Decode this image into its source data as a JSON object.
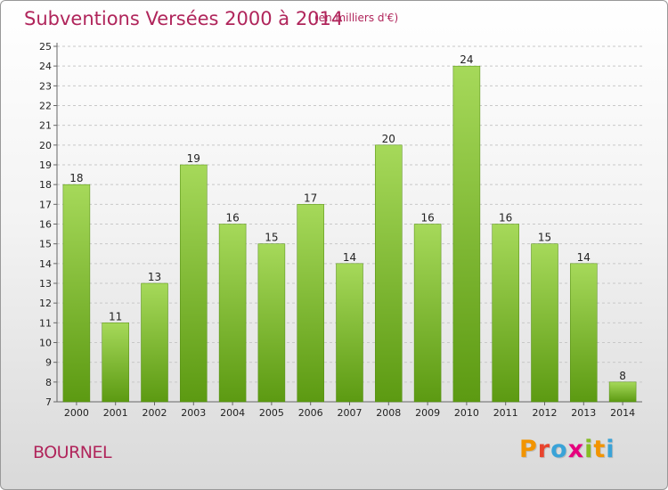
{
  "header": {
    "title": "Subventions Versées 2000 à 2014",
    "subtitle": "(en milliers d'€)"
  },
  "footer": {
    "commune": "BOURNEL",
    "logo_letters": [
      "P",
      "r",
      "o",
      "x",
      "i",
      "t",
      "i"
    ],
    "logo_colors": [
      "#f29400",
      "#e8442e",
      "#3aa3d8",
      "#e6007e",
      "#86bc25",
      "#f29400",
      "#3aa3d8"
    ]
  },
  "colors": {
    "bar_top": "#a6d95a",
    "bar_bottom": "#5c9a12",
    "accent": "#b0255b"
  },
  "chart_data": {
    "type": "bar",
    "categories": [
      "2000",
      "2001",
      "2002",
      "2003",
      "2004",
      "2005",
      "2006",
      "2007",
      "2008",
      "2009",
      "2010",
      "2011",
      "2012",
      "2013",
      "2014"
    ],
    "values": [
      18,
      11,
      13,
      19,
      16,
      15,
      17,
      14,
      20,
      16,
      24,
      16,
      15,
      14,
      8
    ],
    "ylim": [
      7,
      25
    ],
    "yticks": [
      7,
      8,
      9,
      10,
      11,
      12,
      13,
      14,
      15,
      16,
      17,
      18,
      19,
      20,
      21,
      22,
      23,
      24,
      25
    ],
    "grid": "horizontal dashed",
    "title": "Subventions Versées 2000 à 2014",
    "xlabel": "",
    "ylabel": ""
  }
}
